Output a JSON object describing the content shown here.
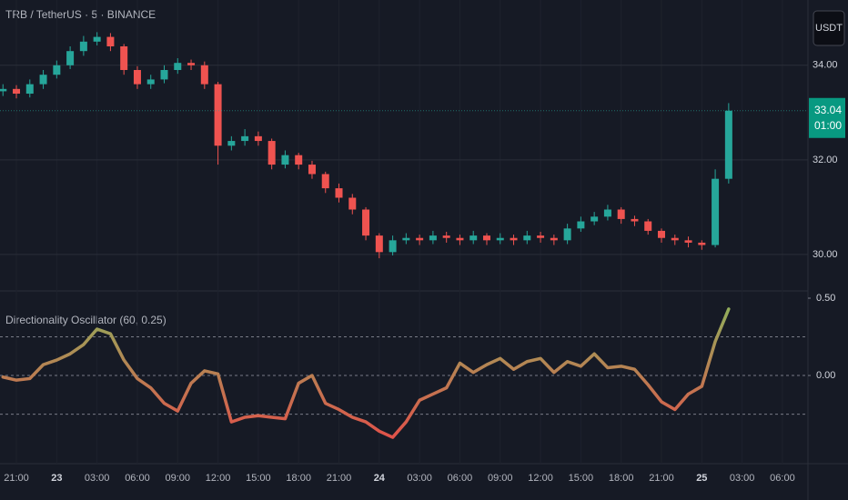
{
  "chart_data": [
    {
      "type": "candlestick",
      "title": "TRB / TetherUS · 5 · BINANCE",
      "currency": "USDT",
      "x": [
        -1,
        0,
        1,
        2,
        3,
        4,
        5,
        6,
        7,
        8,
        9,
        10,
        11,
        12,
        13,
        14,
        15,
        16,
        17,
        18,
        19,
        20,
        21,
        22,
        23,
        24,
        25,
        26,
        27,
        28,
        29,
        30,
        31,
        32,
        33,
        34,
        35,
        36,
        37,
        38,
        39,
        40,
        41,
        42,
        43,
        44,
        45,
        46,
        47,
        48,
        49,
        50,
        51,
        52,
        53
      ],
      "open": [
        33.45,
        33.5,
        33.4,
        33.6,
        33.8,
        34.0,
        34.3,
        34.5,
        34.6,
        34.4,
        33.9,
        33.6,
        33.7,
        33.9,
        34.05,
        34.0,
        33.6,
        32.3,
        32.4,
        32.5,
        32.4,
        31.9,
        32.1,
        31.9,
        31.7,
        31.4,
        31.2,
        30.95,
        30.4,
        30.05,
        30.3,
        30.35,
        30.3,
        30.4,
        30.35,
        30.3,
        30.4,
        30.3,
        30.35,
        30.3,
        30.4,
        30.35,
        30.3,
        30.55,
        30.7,
        30.8,
        30.95,
        30.75,
        30.7,
        30.5,
        30.35,
        30.3,
        30.25,
        30.2,
        31.6
      ],
      "high": [
        33.6,
        33.58,
        33.7,
        33.9,
        34.1,
        34.4,
        34.62,
        34.7,
        34.68,
        34.45,
        33.98,
        33.8,
        34.0,
        34.15,
        34.12,
        34.08,
        33.65,
        32.5,
        32.65,
        32.6,
        32.45,
        32.2,
        32.15,
        31.98,
        31.75,
        31.5,
        31.28,
        31.0,
        30.45,
        30.4,
        30.45,
        30.42,
        30.5,
        30.48,
        30.42,
        30.5,
        30.45,
        30.45,
        30.42,
        30.5,
        30.48,
        30.42,
        30.65,
        30.8,
        30.9,
        31.05,
        31.0,
        30.82,
        30.75,
        30.55,
        30.42,
        30.38,
        30.3,
        31.8,
        33.2
      ],
      "low": [
        33.35,
        33.3,
        33.32,
        33.5,
        33.72,
        33.92,
        34.2,
        34.42,
        34.3,
        33.8,
        33.5,
        33.5,
        33.62,
        33.82,
        33.9,
        33.5,
        31.9,
        32.2,
        32.3,
        32.3,
        31.8,
        31.82,
        31.8,
        31.6,
        31.3,
        31.1,
        30.85,
        30.3,
        29.92,
        29.98,
        30.22,
        30.2,
        30.22,
        30.25,
        30.2,
        30.22,
        30.2,
        30.22,
        30.2,
        30.22,
        30.25,
        30.2,
        30.22,
        30.48,
        30.62,
        30.72,
        30.65,
        30.6,
        30.42,
        30.25,
        30.2,
        30.15,
        30.1,
        30.15,
        31.5
      ],
      "close": [
        33.5,
        33.4,
        33.6,
        33.8,
        34.0,
        34.3,
        34.5,
        34.6,
        34.4,
        33.9,
        33.6,
        33.7,
        33.9,
        34.05,
        34.0,
        33.6,
        32.3,
        32.4,
        32.5,
        32.4,
        31.9,
        32.1,
        31.9,
        31.7,
        31.4,
        31.2,
        30.95,
        30.4,
        30.05,
        30.3,
        30.35,
        30.3,
        30.4,
        30.35,
        30.3,
        30.4,
        30.3,
        30.35,
        30.3,
        30.4,
        30.35,
        30.3,
        30.55,
        30.7,
        30.8,
        30.95,
        30.75,
        30.7,
        30.5,
        30.35,
        30.3,
        30.25,
        30.2,
        31.6,
        33.04
      ],
      "up_color": "#26a69a",
      "down_color": "#ef5350",
      "last_price": 33.04,
      "countdown": "01:00",
      "ylim": [
        29.23,
        35.38
      ],
      "yticks": [
        {
          "value": 30,
          "label": "30.00"
        },
        {
          "value": 32,
          "label": "32.00"
        },
        {
          "value": 34,
          "label": "34.00"
        }
      ],
      "xlim": [
        -1.22,
        58.9
      ],
      "xticks": [
        {
          "value": 0,
          "label": "21:00"
        },
        {
          "value": 3,
          "label": "23"
        },
        {
          "value": 6,
          "label": "03:00"
        },
        {
          "value": 9,
          "label": "06:00"
        },
        {
          "value": 12,
          "label": "09:00"
        },
        {
          "value": 15,
          "label": "12:00"
        },
        {
          "value": 18,
          "label": "15:00"
        },
        {
          "value": 21,
          "label": "18:00"
        },
        {
          "value": 24,
          "label": "21:00"
        },
        {
          "value": 27,
          "label": "24"
        },
        {
          "value": 30,
          "label": "03:00"
        },
        {
          "value": 33,
          "label": "06:00"
        },
        {
          "value": 36,
          "label": "09:00"
        },
        {
          "value": 39,
          "label": "12:00"
        },
        {
          "value": 42,
          "label": "15:00"
        },
        {
          "value": 45,
          "label": "18:00"
        },
        {
          "value": 48,
          "label": "21:00"
        },
        {
          "value": 51,
          "label": "25"
        },
        {
          "value": 54,
          "label": "03:00"
        },
        {
          "value": 57,
          "label": "06:00"
        }
      ],
      "grid": true
    },
    {
      "type": "line",
      "title": "Directionality Oscillator (60, 0.25)",
      "x": [
        -1,
        0,
        1,
        2,
        3,
        4,
        5,
        6,
        7,
        8,
        9,
        10,
        11,
        12,
        13,
        14,
        15,
        16,
        17,
        18,
        19,
        20,
        21,
        22,
        23,
        24,
        25,
        26,
        27,
        28,
        29,
        30,
        31,
        32,
        33,
        34,
        35,
        36,
        37,
        38,
        39,
        40,
        41,
        42,
        43,
        44,
        45,
        46,
        47,
        48,
        49,
        50,
        51,
        52,
        53
      ],
      "values": [
        -0.01,
        -0.03,
        -0.02,
        0.07,
        0.1,
        0.14,
        0.2,
        0.3,
        0.27,
        0.1,
        -0.02,
        -0.08,
        -0.18,
        -0.23,
        -0.05,
        0.03,
        0.01,
        -0.3,
        -0.27,
        -0.26,
        -0.27,
        -0.28,
        -0.05,
        0.0,
        -0.18,
        -0.22,
        -0.27,
        -0.3,
        -0.36,
        -0.4,
        -0.3,
        -0.16,
        -0.12,
        -0.08,
        0.08,
        0.02,
        0.07,
        0.11,
        0.04,
        0.09,
        0.11,
        0.02,
        0.09,
        0.06,
        0.14,
        0.05,
        0.06,
        0.04,
        -0.06,
        -0.17,
        -0.22,
        -0.12,
        -0.07,
        0.22,
        0.43
      ],
      "color_high": "#8db35c",
      "color_low": "#e0534a",
      "levels": [
        0.25,
        0,
        -0.25
      ],
      "ylim": [
        -0.57,
        0.547
      ],
      "yticks": [
        {
          "value": 0,
          "label": "0.00"
        },
        {
          "value": 0.5,
          "label": "0.50"
        }
      ],
      "xlim": [
        -1.22,
        58.9
      ]
    }
  ]
}
